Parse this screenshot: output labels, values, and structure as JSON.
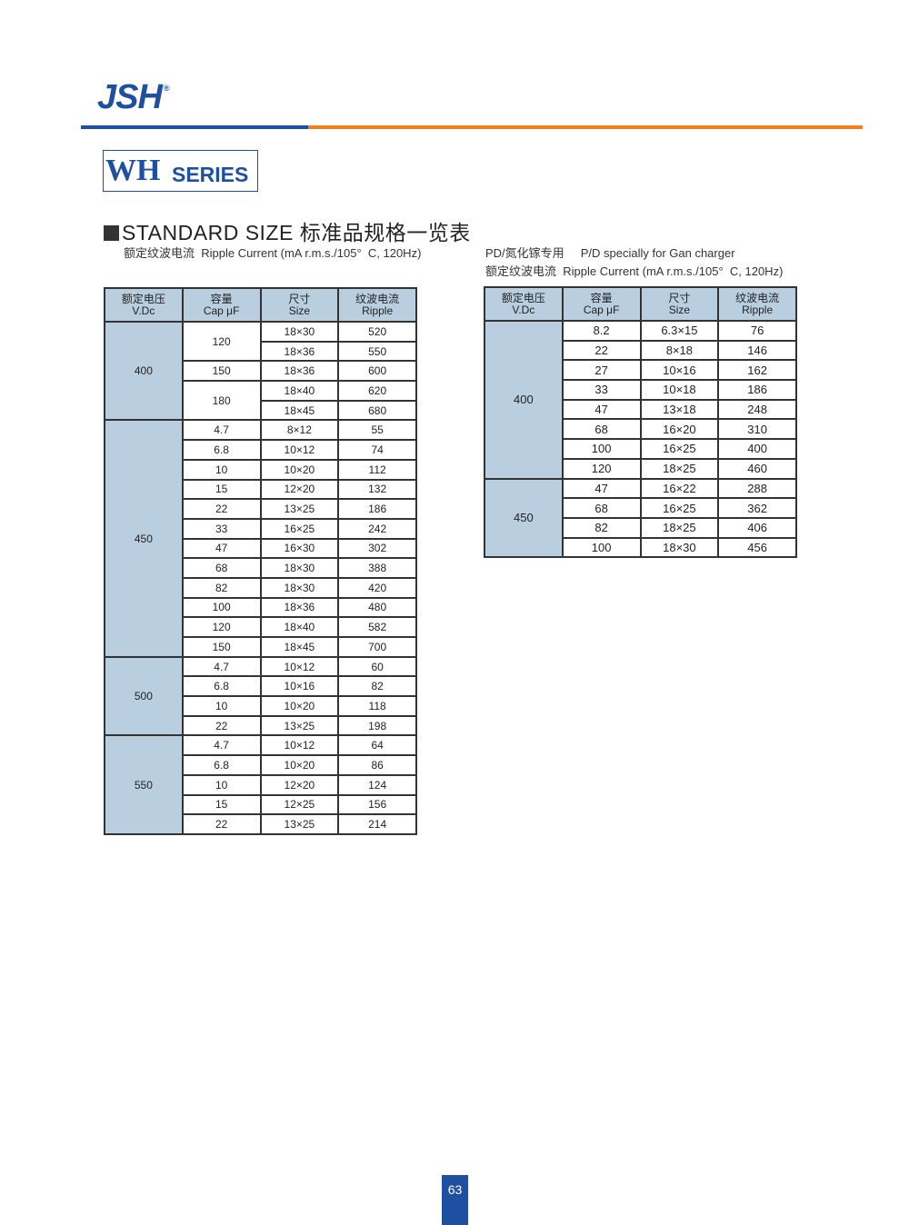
{
  "brand": {
    "logo": "JSH",
    "reg": "®",
    "colors": {
      "blue": "#1e4fa0",
      "orange": "#ee7f1a",
      "header_bg": "#b9cfe0"
    }
  },
  "series": {
    "wh": "WH",
    "label": "SERIES"
  },
  "section_title": "STANDARD SIZE 标准品规格一览表",
  "left_note": "额定纹波电流  Ripple Current (mA r.m.s./105°  C, 120Hz)",
  "right_note1": "PD/氮化镓专用     P/D specially for Gan charger",
  "right_note2": "额定纹波电流  Ripple Current (mA r.m.s./105°  C, 120Hz)",
  "headers": [
    [
      "额定电压",
      "V.Dc"
    ],
    [
      "容量",
      "Cap  μF"
    ],
    [
      "尺寸",
      "Size"
    ],
    [
      "纹波电流",
      "Ripple"
    ]
  ],
  "left_table": [
    {
      "voltage": "400",
      "caps": [
        {
          "cap": "120",
          "rows": [
            [
              "18×30",
              "520"
            ],
            [
              "18×36",
              "550"
            ]
          ]
        },
        {
          "cap": "150",
          "rows": [
            [
              "18×36",
              "600"
            ]
          ]
        },
        {
          "cap": "180",
          "rows": [
            [
              "18×40",
              "620"
            ],
            [
              "18×45",
              "680"
            ]
          ]
        }
      ]
    },
    {
      "voltage": "450",
      "caps": [
        {
          "cap": "4.7",
          "rows": [
            [
              "8×12",
              "55"
            ]
          ]
        },
        {
          "cap": "6.8",
          "rows": [
            [
              "10×12",
              "74"
            ]
          ]
        },
        {
          "cap": "10",
          "rows": [
            [
              "10×20",
              "112"
            ]
          ]
        },
        {
          "cap": "15",
          "rows": [
            [
              "12×20",
              "132"
            ]
          ]
        },
        {
          "cap": "22",
          "rows": [
            [
              "13×25",
              "186"
            ]
          ]
        },
        {
          "cap": "33",
          "rows": [
            [
              "16×25",
              "242"
            ]
          ]
        },
        {
          "cap": "47",
          "rows": [
            [
              "16×30",
              "302"
            ]
          ]
        },
        {
          "cap": "68",
          "rows": [
            [
              "18×30",
              "388"
            ]
          ]
        },
        {
          "cap": "82",
          "rows": [
            [
              "18×30",
              "420"
            ]
          ]
        },
        {
          "cap": "100",
          "rows": [
            [
              "18×36",
              "480"
            ]
          ]
        },
        {
          "cap": "120",
          "rows": [
            [
              "18×40",
              "582"
            ]
          ]
        },
        {
          "cap": "150",
          "rows": [
            [
              "18×45",
              "700"
            ]
          ]
        }
      ]
    },
    {
      "voltage": "500",
      "caps": [
        {
          "cap": "4.7",
          "rows": [
            [
              "10×12",
              "60"
            ]
          ]
        },
        {
          "cap": "6.8",
          "rows": [
            [
              "10×16",
              "82"
            ]
          ]
        },
        {
          "cap": "10",
          "rows": [
            [
              "10×20",
              "118"
            ]
          ]
        },
        {
          "cap": "22",
          "rows": [
            [
              "13×25",
              "198"
            ]
          ]
        }
      ]
    },
    {
      "voltage": "550",
      "caps": [
        {
          "cap": "4.7",
          "rows": [
            [
              "10×12",
              "64"
            ]
          ]
        },
        {
          "cap": "6.8",
          "rows": [
            [
              "10×20",
              "86"
            ]
          ]
        },
        {
          "cap": "10",
          "rows": [
            [
              "12×20",
              "124"
            ]
          ]
        },
        {
          "cap": "15",
          "rows": [
            [
              "12×25",
              "156"
            ]
          ]
        },
        {
          "cap": "22",
          "rows": [
            [
              "13×25",
              "214"
            ]
          ]
        }
      ]
    }
  ],
  "right_table": [
    {
      "voltage": "400",
      "caps": [
        {
          "cap": "8.2",
          "rows": [
            [
              "6.3×15",
              "76"
            ]
          ]
        },
        {
          "cap": "22",
          "rows": [
            [
              "8×18",
              "146"
            ]
          ]
        },
        {
          "cap": "27",
          "rows": [
            [
              "10×16",
              "162"
            ]
          ]
        },
        {
          "cap": "33",
          "rows": [
            [
              "10×18",
              "186"
            ]
          ]
        },
        {
          "cap": "47",
          "rows": [
            [
              "13×18",
              "248"
            ]
          ]
        },
        {
          "cap": "68",
          "rows": [
            [
              "16×20",
              "310"
            ]
          ]
        },
        {
          "cap": "100",
          "rows": [
            [
              "16×25",
              "400"
            ]
          ]
        },
        {
          "cap": "120",
          "rows": [
            [
              "18×25",
              "460"
            ]
          ]
        }
      ]
    },
    {
      "voltage": "450",
      "caps": [
        {
          "cap": "47",
          "rows": [
            [
              "16×22",
              "288"
            ]
          ]
        },
        {
          "cap": "68",
          "rows": [
            [
              "16×25",
              "362"
            ]
          ]
        },
        {
          "cap": "82",
          "rows": [
            [
              "18×25",
              "406"
            ]
          ]
        },
        {
          "cap": "100",
          "rows": [
            [
              "18×30",
              "456"
            ]
          ]
        }
      ]
    }
  ],
  "page_number": "63"
}
